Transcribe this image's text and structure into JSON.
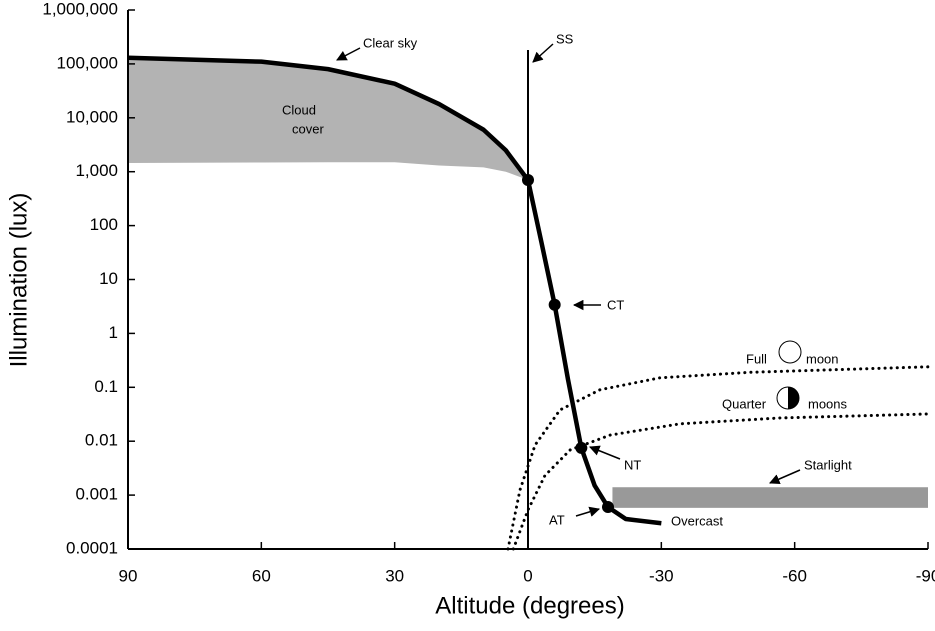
{
  "chart_data": {
    "type": "line",
    "xlabel": "Altitude (degrees)",
    "ylabel": "Illumination (lux)",
    "log_y": true,
    "xlim": [
      90,
      -90
    ],
    "ylim": [
      0.0001,
      1000000
    ],
    "xticks": [
      90,
      60,
      30,
      0,
      -30,
      -60,
      -90
    ],
    "yticks": [
      {
        "value": 1000000,
        "label": "1,000,000"
      },
      {
        "value": 100000,
        "label": "100,000"
      },
      {
        "value": 10000,
        "label": "10,000"
      },
      {
        "value": 1000,
        "label": "1,000"
      },
      100,
      10,
      1,
      0.1,
      0.01,
      0.001,
      0.0001
    ],
    "series": [
      {
        "name": "Clear sky",
        "color": "#000000",
        "style": "solid",
        "x": [
          90,
          60,
          45,
          30,
          20,
          10,
          5,
          0,
          -3,
          -6,
          -9,
          -12,
          -15,
          -18,
          -22,
          -30
        ],
        "values": [
          130000,
          110000,
          80000,
          43000,
          18000,
          6000,
          2500,
          700,
          50,
          3.4,
          0.14,
          0.0075,
          0.0015,
          0.0006,
          0.00036,
          0.0003
        ]
      },
      {
        "name": "Full moon",
        "label_parts": [
          "Full",
          "moon"
        ],
        "color": "#000000",
        "style": "dotted",
        "x": [
          4.5,
          1.8,
          -1.6,
          -7.2,
          -16.2,
          -29.7,
          -50,
          -90
        ],
        "values": [
          0.0001,
          0.00125,
          0.0085,
          0.038,
          0.09,
          0.15,
          0.19,
          0.24
        ]
      },
      {
        "name": "Quarter moons",
        "label_parts": [
          "Quarter",
          "moons"
        ],
        "color": "#000000",
        "style": "dotted",
        "x": [
          3.3,
          0,
          -3.8,
          -9.5,
          -18.5,
          -34.2,
          -56.7,
          -90
        ],
        "values": [
          0.0001,
          0.00053,
          0.0023,
          0.0069,
          0.013,
          0.021,
          0.027,
          0.032
        ]
      }
    ],
    "markers": [
      {
        "label": "SS",
        "x": 0,
        "value": 700
      },
      {
        "label": "CT",
        "x": -6,
        "value": 3.4
      },
      {
        "label": "NT",
        "x": -12,
        "value": 0.0075
      },
      {
        "label": "AT",
        "x": -18,
        "value": 0.0006
      }
    ],
    "cloud_cover": {
      "label": [
        "Cloud",
        "cover"
      ],
      "color": "#b3b3b3",
      "x": [
        90,
        60,
        45,
        30,
        20,
        10,
        5,
        0
      ],
      "high": [
        130000,
        110000,
        80000,
        43000,
        18000,
        6000,
        2500,
        700
      ],
      "low": [
        1450,
        1480,
        1500,
        1500,
        1300,
        1200,
        1000,
        700
      ]
    },
    "starlight": {
      "label": "Starlight",
      "color": "#999999",
      "x": [
        -19,
        -90
      ],
      "high": 0.0014,
      "low": 0.00058
    },
    "overcast_label": "Overcast"
  }
}
